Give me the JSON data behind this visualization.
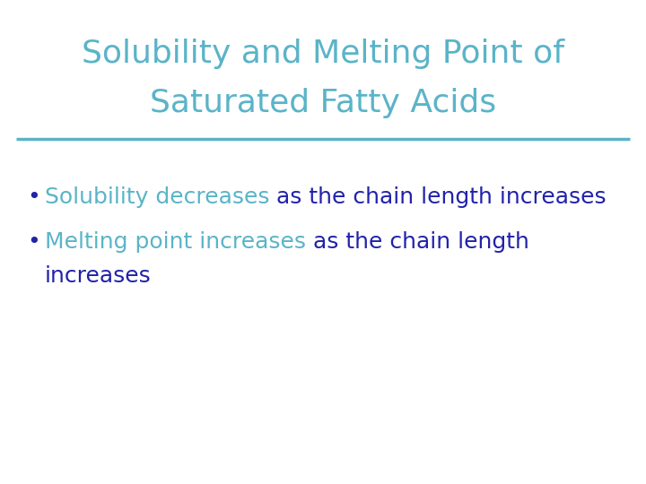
{
  "title_line1": "Solubility and Melting Point of",
  "title_line2": "Saturated Fatty Acids",
  "title_color": "#5AB4C8",
  "divider_color": "#5AB4C8",
  "highlight_color": "#5AB4C8",
  "text_color": "#2222AA",
  "bullet_color": "#2222AA",
  "background_color": "#FFFFFF",
  "title_fontsize": 26,
  "body_fontsize": 18,
  "bullet1_part1": "Solubility decreases",
  "bullet1_part2": " as the chain length increases",
  "bullet2_part1": "Melting point increases",
  "bullet2_part2": " as the chain length",
  "bullet2_line2": "increases"
}
